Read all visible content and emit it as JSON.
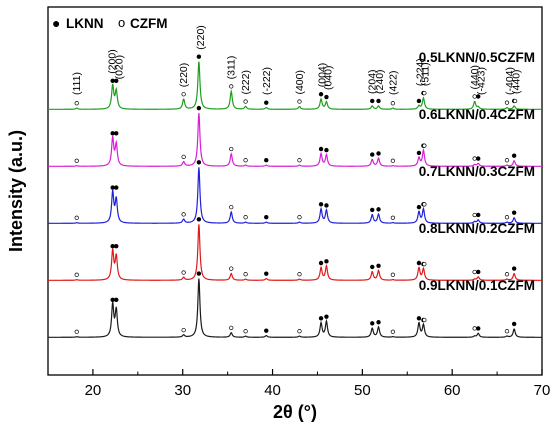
{
  "chart_data": {
    "type": "line",
    "xlabel": "2θ (°)",
    "ylabel": "Intensity (a.u.)",
    "xlim": [
      15,
      70
    ],
    "x_ticks": [
      20,
      30,
      40,
      50,
      60,
      70
    ],
    "y_ticks_shown": false,
    "grid": false,
    "legend": {
      "placement": "top-left",
      "entries": [
        {
          "marker": "filled-circle",
          "symbol": "●",
          "label": "LKNN"
        },
        {
          "marker": "open-circle",
          "symbol": "o",
          "label": "CZFM"
        }
      ]
    },
    "series": [
      {
        "name": "0.5LKNN/0.5CZFM",
        "color": "#1f9e1f",
        "offset": 4,
        "lknn_peaks": [
          22.2,
          22.6,
          31.8,
          39.3,
          45.4,
          46.0,
          51.1,
          51.8,
          56.3,
          56.8,
          62.9,
          66.9
        ],
        "czfm_peaks": [
          18.2,
          30.1,
          35.4,
          37.0,
          43.0,
          53.4,
          56.9,
          62.5,
          66.1,
          67.0
        ],
        "peaks": [
          [
            18.2,
            0.02
          ],
          [
            22.2,
            0.42
          ],
          [
            22.6,
            0.32
          ],
          [
            30.1,
            0.18
          ],
          [
            31.8,
            0.85
          ],
          [
            35.4,
            0.32
          ],
          [
            37.0,
            0.05
          ],
          [
            39.3,
            0.03
          ],
          [
            43.0,
            0.05
          ],
          [
            45.4,
            0.18
          ],
          [
            46.0,
            0.13
          ],
          [
            51.1,
            0.06
          ],
          [
            51.8,
            0.06
          ],
          [
            53.4,
            0.02
          ],
          [
            56.3,
            0.06
          ],
          [
            56.8,
            0.2
          ],
          [
            62.5,
            0.14
          ],
          [
            62.9,
            0.04
          ],
          [
            66.1,
            0.03
          ],
          [
            66.9,
            0.06
          ]
        ]
      },
      {
        "name": "0.6LKNN/0.4CZFM",
        "color": "#d81ed8",
        "offset": 3,
        "lknn_peaks": [
          22.2,
          22.6,
          31.8,
          39.3,
          45.4,
          46.0,
          51.1,
          51.8,
          56.3,
          56.8,
          62.9,
          66.9
        ],
        "czfm_peaks": [
          18.2,
          30.1,
          35.4,
          37.0,
          43.0,
          53.4,
          56.9,
          62.5,
          66.1
        ],
        "peaks": [
          [
            18.2,
            0.01
          ],
          [
            22.2,
            0.5
          ],
          [
            22.6,
            0.38
          ],
          [
            30.1,
            0.08
          ],
          [
            31.8,
            0.95
          ],
          [
            35.4,
            0.22
          ],
          [
            37.0,
            0.02
          ],
          [
            39.3,
            0.02
          ],
          [
            43.0,
            0.02
          ],
          [
            45.4,
            0.22
          ],
          [
            46.0,
            0.2
          ],
          [
            51.1,
            0.12
          ],
          [
            51.8,
            0.14
          ],
          [
            53.4,
            0.01
          ],
          [
            56.3,
            0.15
          ],
          [
            56.8,
            0.28
          ],
          [
            62.5,
            0.03
          ],
          [
            62.9,
            0.05
          ],
          [
            66.1,
            0.02
          ],
          [
            66.9,
            0.1
          ]
        ]
      },
      {
        "name": "0.7LKNN/0.3CZFM",
        "color": "#2020d8",
        "offset": 2,
        "lknn_peaks": [
          22.2,
          22.6,
          31.8,
          39.3,
          45.4,
          46.0,
          51.1,
          51.8,
          56.3,
          56.8,
          62.9,
          66.9
        ],
        "czfm_peaks": [
          18.2,
          30.1,
          35.4,
          37.0,
          43.0,
          53.4,
          56.9,
          62.5,
          66.1
        ],
        "peaks": [
          [
            18.2,
            0.01
          ],
          [
            22.2,
            0.55
          ],
          [
            22.6,
            0.42
          ],
          [
            30.1,
            0.07
          ],
          [
            31.8,
            1.0
          ],
          [
            35.4,
            0.2
          ],
          [
            37.0,
            0.02
          ],
          [
            39.3,
            0.02
          ],
          [
            43.0,
            0.02
          ],
          [
            45.4,
            0.25
          ],
          [
            46.0,
            0.23
          ],
          [
            51.1,
            0.15
          ],
          [
            51.8,
            0.16
          ],
          [
            53.4,
            0.01
          ],
          [
            56.3,
            0.2
          ],
          [
            56.8,
            0.25
          ],
          [
            62.5,
            0.03
          ],
          [
            62.9,
            0.06
          ],
          [
            66.1,
            0.02
          ],
          [
            66.9,
            0.1
          ]
        ]
      },
      {
        "name": "0.8LKNN/0.2CZFM",
        "color": "#e01818",
        "offset": 1,
        "lknn_peaks": [
          22.2,
          22.6,
          31.8,
          39.3,
          45.4,
          46.0,
          51.1,
          51.8,
          56.3,
          56.8,
          62.9,
          66.9
        ],
        "czfm_peaks": [
          18.2,
          30.1,
          35.4,
          37.0,
          43.0,
          53.4,
          56.9,
          62.5,
          66.1
        ],
        "peaks": [
          [
            18.2,
            0.01
          ],
          [
            22.2,
            0.52
          ],
          [
            22.6,
            0.42
          ],
          [
            30.1,
            0.05
          ],
          [
            31.8,
            1.0
          ],
          [
            35.4,
            0.12
          ],
          [
            37.0,
            0.02
          ],
          [
            39.3,
            0.03
          ],
          [
            43.0,
            0.02
          ],
          [
            45.4,
            0.22
          ],
          [
            46.0,
            0.25
          ],
          [
            51.1,
            0.15
          ],
          [
            51.8,
            0.17
          ],
          [
            53.4,
            0.01
          ],
          [
            56.3,
            0.22
          ],
          [
            56.8,
            0.2
          ],
          [
            62.5,
            0.02
          ],
          [
            62.9,
            0.06
          ],
          [
            66.1,
            0.02
          ],
          [
            66.9,
            0.12
          ]
        ]
      },
      {
        "name": "0.9LKNN/0.1CZFM",
        "color": "#1a1a1a",
        "offset": 0,
        "lknn_peaks": [
          22.2,
          22.6,
          31.8,
          39.3,
          45.4,
          46.0,
          51.1,
          51.8,
          56.3,
          56.8,
          62.9,
          66.9
        ],
        "czfm_peaks": [
          18.2,
          30.1,
          35.4,
          37.0,
          43.0,
          53.4,
          56.9,
          62.5,
          66.1
        ],
        "peaks": [
          [
            18.2,
            0.01
          ],
          [
            22.2,
            0.58
          ],
          [
            22.6,
            0.48
          ],
          [
            30.1,
            0.04
          ],
          [
            31.8,
            1.05
          ],
          [
            35.4,
            0.08
          ],
          [
            37.0,
            0.02
          ],
          [
            39.3,
            0.03
          ],
          [
            43.0,
            0.02
          ],
          [
            45.4,
            0.25
          ],
          [
            46.0,
            0.28
          ],
          [
            51.1,
            0.16
          ],
          [
            51.8,
            0.18
          ],
          [
            53.4,
            0.01
          ],
          [
            56.3,
            0.25
          ],
          [
            56.8,
            0.22
          ],
          [
            62.5,
            0.02
          ],
          [
            62.9,
            0.07
          ],
          [
            66.1,
            0.02
          ],
          [
            66.9,
            0.15
          ]
        ]
      }
    ],
    "annotations": [
      {
        "text": "(111)",
        "x": 18.2
      },
      {
        "text": "(200)",
        "x": 22.1
      },
      {
        "text": "(020)",
        "x": 22.9
      },
      {
        "text": "(220)",
        "x": 30.1
      },
      {
        "text": "(220)",
        "x": 32.0
      },
      {
        "text": "(311)",
        "x": 35.4
      },
      {
        "text": "(222)",
        "x": 37.0
      },
      {
        "text": "(-222)",
        "x": 39.3
      },
      {
        "text": "(400)",
        "x": 43.0
      },
      {
        "text": "(004)",
        "x": 45.5
      },
      {
        "text": "(040)",
        "x": 46.2
      },
      {
        "text": "(204)",
        "x": 51.1
      },
      {
        "text": "(240)",
        "x": 51.9
      },
      {
        "text": "(422)",
        "x": 53.4
      },
      {
        "text": "(-224)",
        "x": 56.4
      },
      {
        "text": "(511)",
        "x": 57.0
      },
      {
        "text": "(440)",
        "x": 62.5
      },
      {
        "text": "(-423)",
        "x": 63.2
      },
      {
        "text": "(-404)",
        "x": 66.4
      },
      {
        "text": "(440)",
        "x": 67.1
      }
    ]
  }
}
